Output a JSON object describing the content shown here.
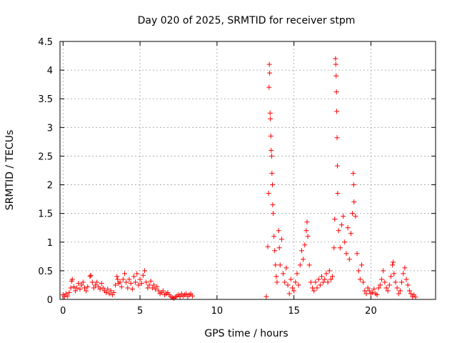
{
  "chart_data": {
    "type": "scatter",
    "title": "Day 020 of 2025, SRMTID for receiver stpm",
    "xlabel": "GPS time / hours",
    "ylabel": "SRMTID / TECUs",
    "xlim": [
      -0.2,
      24.2
    ],
    "ylim": [
      0,
      4.5
    ],
    "xticks": [
      0,
      5,
      10,
      15,
      20
    ],
    "yticks": [
      0,
      0.5,
      1,
      1.5,
      2,
      2.5,
      3,
      3.5,
      4,
      4.5
    ],
    "xtick_labels": [
      "0",
      "5",
      "10",
      "15",
      "20"
    ],
    "ytick_labels": [
      "0",
      "0.5",
      "1",
      "1.5",
      "2",
      "2.5",
      "3",
      "3.5",
      "4",
      "4.5"
    ],
    "grid": true,
    "marker": "+",
    "color": "#ff0000",
    "series": [
      {
        "name": "SRMTID",
        "points": [
          [
            0.0,
            0.08
          ],
          [
            0.1,
            0.05
          ],
          [
            0.2,
            0.1
          ],
          [
            0.3,
            0.06
          ],
          [
            0.4,
            0.12
          ],
          [
            0.5,
            0.2
          ],
          [
            0.55,
            0.32
          ],
          [
            0.6,
            0.35
          ],
          [
            0.7,
            0.22
          ],
          [
            0.8,
            0.15
          ],
          [
            0.9,
            0.2
          ],
          [
            1.0,
            0.28
          ],
          [
            1.1,
            0.18
          ],
          [
            1.2,
            0.25
          ],
          [
            1.3,
            0.3
          ],
          [
            1.4,
            0.2
          ],
          [
            1.5,
            0.15
          ],
          [
            1.6,
            0.22
          ],
          [
            1.75,
            0.4
          ],
          [
            1.8,
            0.42
          ],
          [
            1.9,
            0.3
          ],
          [
            2.0,
            0.2
          ],
          [
            2.1,
            0.25
          ],
          [
            2.2,
            0.3
          ],
          [
            2.3,
            0.22
          ],
          [
            2.4,
            0.18
          ],
          [
            2.5,
            0.28
          ],
          [
            2.6,
            0.2
          ],
          [
            2.7,
            0.15
          ],
          [
            2.8,
            0.12
          ],
          [
            2.9,
            0.18
          ],
          [
            3.0,
            0.1
          ],
          [
            3.1,
            0.15
          ],
          [
            3.2,
            0.08
          ],
          [
            3.3,
            0.12
          ],
          [
            3.4,
            0.25
          ],
          [
            3.5,
            0.4
          ],
          [
            3.55,
            0.35
          ],
          [
            3.6,
            0.28
          ],
          [
            3.7,
            0.3
          ],
          [
            3.8,
            0.22
          ],
          [
            3.9,
            0.35
          ],
          [
            4.0,
            0.45
          ],
          [
            4.1,
            0.3
          ],
          [
            4.2,
            0.2
          ],
          [
            4.3,
            0.35
          ],
          [
            4.4,
            0.28
          ],
          [
            4.5,
            0.18
          ],
          [
            4.6,
            0.4
          ],
          [
            4.7,
            0.3
          ],
          [
            4.8,
            0.45
          ],
          [
            4.9,
            0.25
          ],
          [
            5.0,
            0.35
          ],
          [
            5.1,
            0.28
          ],
          [
            5.2,
            0.42
          ],
          [
            5.3,
            0.5
          ],
          [
            5.4,
            0.3
          ],
          [
            5.5,
            0.2
          ],
          [
            5.6,
            0.25
          ],
          [
            5.7,
            0.32
          ],
          [
            5.8,
            0.2
          ],
          [
            5.9,
            0.25
          ],
          [
            6.0,
            0.18
          ],
          [
            6.1,
            0.22
          ],
          [
            6.2,
            0.15
          ],
          [
            6.3,
            0.1
          ],
          [
            6.4,
            0.12
          ],
          [
            6.5,
            0.15
          ],
          [
            6.6,
            0.08
          ],
          [
            6.7,
            0.1
          ],
          [
            6.8,
            0.12
          ],
          [
            6.9,
            0.08
          ],
          [
            7.0,
            0.05
          ],
          [
            7.1,
            0.03
          ],
          [
            7.2,
            0.02
          ],
          [
            7.3,
            0.04
          ],
          [
            7.4,
            0.06
          ],
          [
            7.5,
            0.08
          ],
          [
            7.6,
            0.05
          ],
          [
            7.7,
            0.1
          ],
          [
            7.8,
            0.06
          ],
          [
            7.9,
            0.08
          ],
          [
            8.0,
            0.1
          ],
          [
            8.1,
            0.05
          ],
          [
            8.2,
            0.08
          ],
          [
            8.3,
            0.1
          ],
          [
            8.4,
            0.06
          ],
          [
            13.2,
            0.05
          ],
          [
            13.3,
            0.92
          ],
          [
            13.35,
            1.85
          ],
          [
            13.38,
            3.7
          ],
          [
            13.4,
            4.1
          ],
          [
            13.42,
            3.95
          ],
          [
            13.45,
            3.25
          ],
          [
            13.47,
            3.15
          ],
          [
            13.5,
            2.85
          ],
          [
            13.52,
            2.6
          ],
          [
            13.55,
            2.5
          ],
          [
            13.57,
            2.2
          ],
          [
            13.6,
            2.0
          ],
          [
            13.62,
            1.65
          ],
          [
            13.65,
            1.5
          ],
          [
            13.7,
            1.1
          ],
          [
            13.75,
            0.85
          ],
          [
            13.8,
            0.6
          ],
          [
            13.85,
            0.4
          ],
          [
            13.9,
            0.3
          ],
          [
            14.0,
            1.2
          ],
          [
            14.05,
            0.9
          ],
          [
            14.1,
            0.6
          ],
          [
            14.2,
            1.05
          ],
          [
            14.3,
            0.45
          ],
          [
            14.4,
            0.3
          ],
          [
            14.5,
            0.55
          ],
          [
            14.6,
            0.25
          ],
          [
            14.7,
            0.1
          ],
          [
            14.8,
            0.35
          ],
          [
            14.9,
            0.2
          ],
          [
            15.0,
            0.15
          ],
          [
            15.1,
            0.3
          ],
          [
            15.2,
            0.45
          ],
          [
            15.3,
            0.25
          ],
          [
            15.4,
            0.6
          ],
          [
            15.5,
            0.85
          ],
          [
            15.6,
            0.7
          ],
          [
            15.7,
            0.95
          ],
          [
            15.8,
            1.2
          ],
          [
            15.85,
            1.35
          ],
          [
            15.9,
            1.1
          ],
          [
            16.0,
            0.6
          ],
          [
            16.1,
            0.3
          ],
          [
            16.2,
            0.2
          ],
          [
            16.3,
            0.15
          ],
          [
            16.4,
            0.3
          ],
          [
            16.5,
            0.2
          ],
          [
            16.6,
            0.35
          ],
          [
            16.7,
            0.25
          ],
          [
            16.8,
            0.4
          ],
          [
            16.9,
            0.3
          ],
          [
            17.0,
            0.35
          ],
          [
            17.1,
            0.45
          ],
          [
            17.2,
            0.3
          ],
          [
            17.3,
            0.5
          ],
          [
            17.4,
            0.35
          ],
          [
            17.5,
            0.4
          ],
          [
            17.6,
            0.9
          ],
          [
            17.65,
            1.4
          ],
          [
            17.7,
            4.2
          ],
          [
            17.72,
            4.1
          ],
          [
            17.74,
            3.9
          ],
          [
            17.76,
            3.62
          ],
          [
            17.78,
            3.28
          ],
          [
            17.8,
            2.82
          ],
          [
            17.82,
            2.33
          ],
          [
            17.84,
            1.85
          ],
          [
            17.9,
            1.2
          ],
          [
            18.0,
            0.9
          ],
          [
            18.1,
            1.3
          ],
          [
            18.2,
            1.45
          ],
          [
            18.3,
            1.0
          ],
          [
            18.4,
            0.8
          ],
          [
            18.5,
            1.25
          ],
          [
            18.6,
            0.7
          ],
          [
            18.7,
            1.15
          ],
          [
            18.8,
            1.5
          ],
          [
            18.85,
            2.2
          ],
          [
            18.88,
            2.0
          ],
          [
            18.9,
            1.7
          ],
          [
            19.0,
            1.45
          ],
          [
            19.1,
            0.8
          ],
          [
            19.2,
            0.5
          ],
          [
            19.3,
            0.35
          ],
          [
            19.4,
            0.6
          ],
          [
            19.5,
            0.3
          ],
          [
            19.6,
            0.15
          ],
          [
            19.7,
            0.1
          ],
          [
            19.8,
            0.2
          ],
          [
            19.9,
            0.15
          ],
          [
            20.0,
            0.1
          ],
          [
            20.1,
            0.12
          ],
          [
            20.2,
            0.18
          ],
          [
            20.3,
            0.1
          ],
          [
            20.4,
            0.08
          ],
          [
            20.5,
            0.2
          ],
          [
            20.6,
            0.25
          ],
          [
            20.7,
            0.35
          ],
          [
            20.8,
            0.5
          ],
          [
            20.9,
            0.3
          ],
          [
            21.0,
            0.2
          ],
          [
            21.1,
            0.15
          ],
          [
            21.2,
            0.25
          ],
          [
            21.3,
            0.4
          ],
          [
            21.4,
            0.6
          ],
          [
            21.45,
            0.65
          ],
          [
            21.5,
            0.45
          ],
          [
            21.6,
            0.3
          ],
          [
            21.7,
            0.2
          ],
          [
            21.8,
            0.1
          ],
          [
            21.9,
            0.15
          ],
          [
            22.0,
            0.3
          ],
          [
            22.1,
            0.45
          ],
          [
            22.2,
            0.55
          ],
          [
            22.3,
            0.35
          ],
          [
            22.4,
            0.25
          ],
          [
            22.5,
            0.15
          ],
          [
            22.6,
            0.1
          ],
          [
            22.7,
            0.05
          ],
          [
            22.8,
            0.08
          ],
          [
            22.9,
            0.04
          ]
        ]
      }
    ]
  }
}
